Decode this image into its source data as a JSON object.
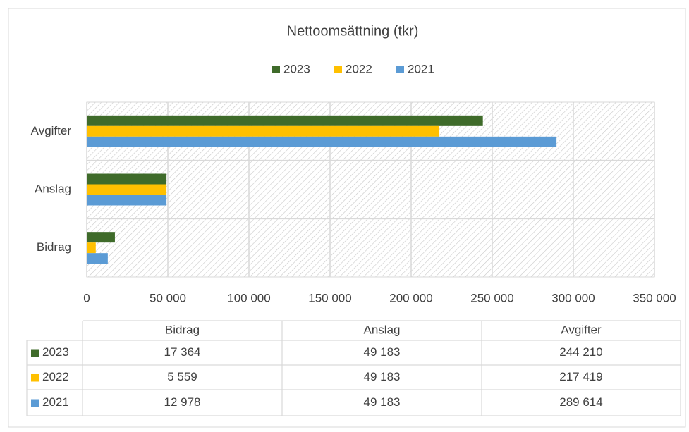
{
  "chart_data": {
    "type": "bar",
    "orientation": "horizontal",
    "title": "Nettoomsättning (tkr)",
    "categories": [
      "Bidrag",
      "Anslag",
      "Avgifter"
    ],
    "series": [
      {
        "name": "2023",
        "color": "#3f6b2a",
        "values": [
          17364,
          49183,
          244210
        ],
        "value_labels": [
          "17 364",
          "49 183",
          "244 210"
        ]
      },
      {
        "name": "2022",
        "color": "#ffc000",
        "values": [
          5559,
          49183,
          217419
        ],
        "value_labels": [
          "5 559",
          "49 183",
          "217 419"
        ]
      },
      {
        "name": "2021",
        "color": "#5b9bd5",
        "values": [
          12978,
          49183,
          289614
        ],
        "value_labels": [
          "12 978",
          "49 183",
          "289 614"
        ]
      }
    ],
    "xlim": [
      0,
      350000
    ],
    "xticks": [
      0,
      {
        "value": 50000,
        "label": "50 000"
      },
      {
        "value": 100000,
        "label": "100 000"
      },
      {
        "value": 150000,
        "label": "150 000"
      },
      {
        "value": 200000,
        "label": "200 000"
      },
      {
        "value": 250000,
        "label": "250 000"
      },
      {
        "value": 300000,
        "label": "300 000"
      },
      {
        "value": 350000,
        "label": "350 000"
      }
    ],
    "grid": true,
    "legend": "top",
    "data_table": true
  }
}
